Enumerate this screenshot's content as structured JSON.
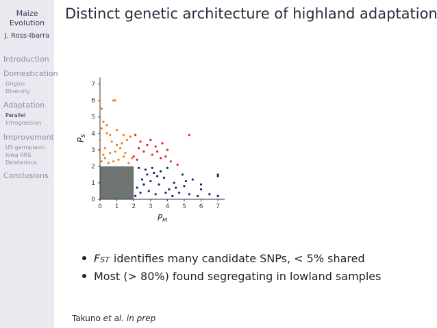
{
  "sidebar": {
    "title_line1": "Maize",
    "title_line2": "Evolution",
    "author": "J. Ross-Ibarra",
    "sections": [
      {
        "label": "Introduction",
        "subs": []
      },
      {
        "label": "Domestication",
        "subs": [
          "Origins",
          "Diversity"
        ]
      },
      {
        "label": "Adaptation",
        "subs": [
          "Parallel",
          "Introgression"
        ]
      },
      {
        "label": "Improvement",
        "subs": [
          "US germplasm",
          "Iowa RRS",
          "Deleterious"
        ]
      },
      {
        "label": "Conclusions",
        "subs": []
      }
    ],
    "active_sub": "Parallel"
  },
  "slide": {
    "title": "Distinct genetic architecture of highland adaptation",
    "bullet1_sym": "F",
    "bullet1_sub": "ST",
    "bullet1_text": "identifies many candidate SNPs, < 5% shared",
    "bullet2_text": "Most (> 80%) found segregating in lowland samples",
    "cite_author": "Takuno",
    "cite_etal": "et al.",
    "cite_status": "in prep"
  },
  "chart_data": {
    "type": "scatter",
    "xlabel": "P",
    "xlabel_sub": "M",
    "ylabel": "P",
    "ylabel_sub": "S",
    "xlim": [
      0,
      7.4
    ],
    "ylim": [
      0,
      7.4
    ],
    "xticks": [
      "0",
      "1",
      "2",
      "3",
      "4",
      "5",
      "6",
      "7"
    ],
    "yticks": [
      "0",
      "1",
      "2",
      "3",
      "4",
      "5",
      "6",
      "7"
    ],
    "grey_box": {
      "x_max": 2.0,
      "y_max": 2.0
    },
    "colors": {
      "grey": "#6e7472",
      "orange": "#f07f1e",
      "red": "#e11b2a",
      "blue": "#1f1f75"
    },
    "series": [
      {
        "color_key": "orange",
        "points": [
          [
            0.0,
            6.0
          ],
          [
            0.1,
            5.5
          ],
          [
            0.0,
            5.0
          ],
          [
            0.2,
            4.7
          ],
          [
            0.4,
            4.5
          ],
          [
            0.8,
            6.0
          ],
          [
            0.9,
            6.0
          ],
          [
            1.0,
            4.2
          ],
          [
            1.3,
            3.4
          ],
          [
            0.6,
            3.9
          ],
          [
            1.6,
            3.6
          ],
          [
            1.8,
            3.8
          ],
          [
            0.3,
            3.1
          ],
          [
            0.9,
            2.9
          ],
          [
            1.4,
            2.6
          ],
          [
            0.1,
            2.3
          ],
          [
            0.5,
            2.2
          ],
          [
            1.1,
            2.4
          ],
          [
            1.7,
            2.2
          ],
          [
            0.0,
            3.6
          ],
          [
            0.2,
            2.7
          ],
          [
            0.7,
            3.5
          ],
          [
            1.2,
            3.1
          ],
          [
            1.5,
            2.8
          ],
          [
            1.9,
            2.5
          ],
          [
            0.4,
            4.0
          ],
          [
            0.1,
            4.3
          ],
          [
            0.3,
            2.5
          ],
          [
            0.8,
            2.3
          ],
          [
            1.0,
            3.3
          ],
          [
            1.4,
            3.9
          ],
          [
            0.6,
            2.8
          ],
          [
            0.0,
            2.9
          ]
        ]
      },
      {
        "color_key": "red",
        "points": [
          [
            2.1,
            3.9
          ],
          [
            2.4,
            3.5
          ],
          [
            3.0,
            3.6
          ],
          [
            3.3,
            3.2
          ],
          [
            3.6,
            2.5
          ],
          [
            3.9,
            2.6
          ],
          [
            4.2,
            2.3
          ],
          [
            5.3,
            3.9
          ],
          [
            2.6,
            2.9
          ],
          [
            3.1,
            2.7
          ],
          [
            2.2,
            2.4
          ],
          [
            4.6,
            2.1
          ],
          [
            2.8,
            3.3
          ],
          [
            3.4,
            2.9
          ],
          [
            2.3,
            3.1
          ],
          [
            2.0,
            2.6
          ],
          [
            4.0,
            3.0
          ],
          [
            3.7,
            3.4
          ]
        ]
      },
      {
        "color_key": "blue",
        "points": [
          [
            2.2,
            0.7
          ],
          [
            2.5,
            1.2
          ],
          [
            2.9,
            0.5
          ],
          [
            3.2,
            1.6
          ],
          [
            3.5,
            0.9
          ],
          [
            3.8,
            1.3
          ],
          [
            4.1,
            0.6
          ],
          [
            4.4,
            1.0
          ],
          [
            4.7,
            0.4
          ],
          [
            5.0,
            0.8
          ],
          [
            5.3,
            0.3
          ],
          [
            5.5,
            1.2
          ],
          [
            6.0,
            0.6
          ],
          [
            6.0,
            0.9
          ],
          [
            7.0,
            1.5
          ],
          [
            7.0,
            1.4
          ],
          [
            2.3,
            1.9
          ],
          [
            2.7,
            1.8
          ],
          [
            3.0,
            1.1
          ],
          [
            3.3,
            0.3
          ],
          [
            3.6,
            1.7
          ],
          [
            4.0,
            1.9
          ],
          [
            4.3,
            0.2
          ],
          [
            4.9,
            1.5
          ],
          [
            2.1,
            0.2
          ],
          [
            2.4,
            0.4
          ],
          [
            2.8,
            1.5
          ],
          [
            3.4,
            1.4
          ],
          [
            3.9,
            0.4
          ],
          [
            4.5,
            0.7
          ],
          [
            5.1,
            1.1
          ],
          [
            5.8,
            0.2
          ],
          [
            6.5,
            0.3
          ],
          [
            7.0,
            0.2
          ],
          [
            3.1,
            1.9
          ],
          [
            2.6,
            0.9
          ]
        ]
      },
      {
        "color_key": "grey",
        "points": [
          [
            1.0,
            1.0
          ],
          [
            1.5,
            1.5
          ],
          [
            0.5,
            0.5
          ],
          [
            1.8,
            0.3
          ],
          [
            0.3,
            1.7
          ]
        ]
      }
    ]
  }
}
